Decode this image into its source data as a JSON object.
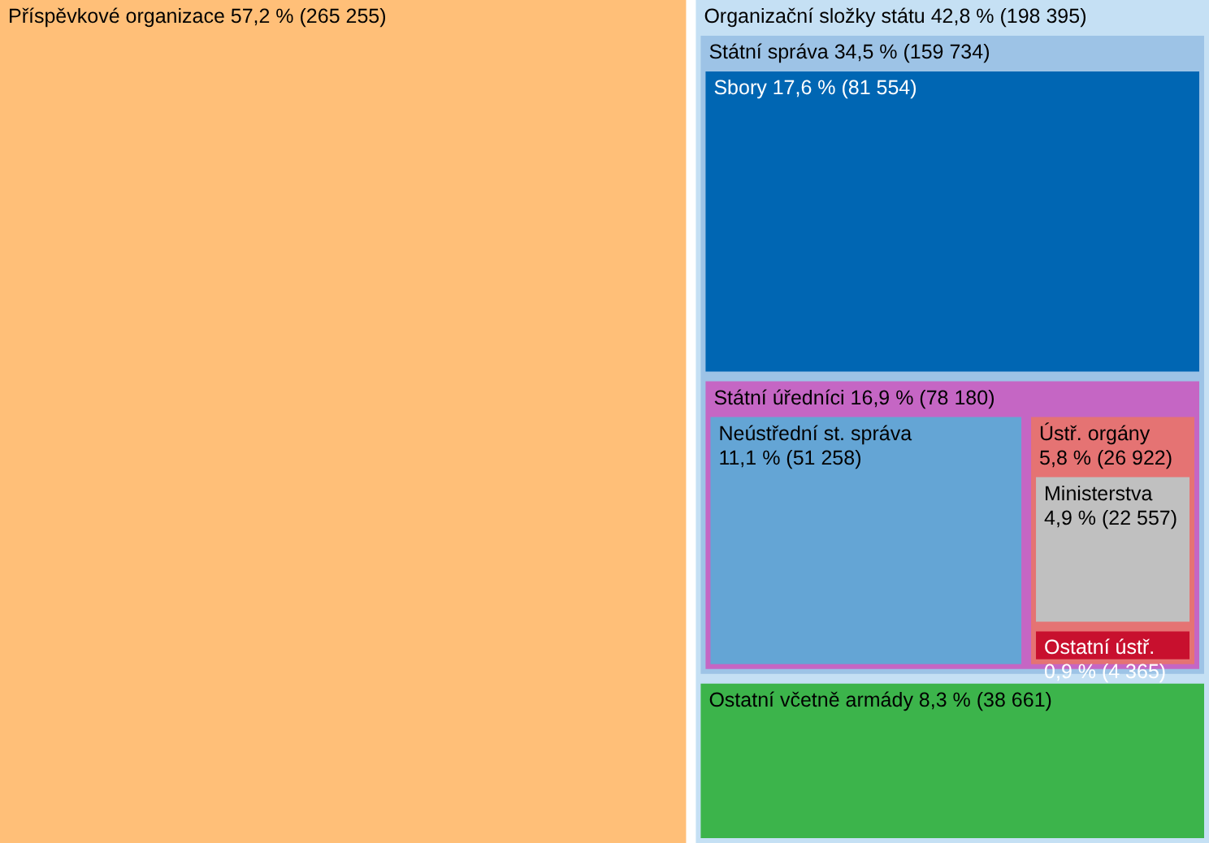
{
  "chart_data": {
    "type": "other",
    "categories": [
      "Příspěvkové organizace",
      "Organizační složky státu",
      "Státní správa",
      "Sbory",
      "Státní úředníci",
      "Neústřední st. správa",
      "Ústř. orgány",
      "Ministerstva",
      "Ostatní ústř.",
      "Ostatní včetně armády"
    ],
    "values": [
      265255,
      198395,
      159734,
      81554,
      78180,
      51258,
      26922,
      22557,
      4365,
      38661
    ],
    "value_labels": [
      "57,2 % (265 255)",
      "42,8 % (198 395)",
      "34,5 % (159 734)",
      "17,6 % (81 554)",
      "16,9 % (78 180)",
      "11,1 % (51 258)",
      "5,8 % (26 922)",
      "4,9 % (22 557)",
      "0,9 % (4 365)",
      "8,3 % (38 661)"
    ],
    "colors": [
      "#ffbf78",
      "#c5e0f4",
      "#9dc3e6",
      "#0066b3",
      "#c566c4",
      "#64a5d5",
      "#e57373",
      "#c0c0c0",
      "#c8102e",
      "#3cb44b"
    ]
  }
}
